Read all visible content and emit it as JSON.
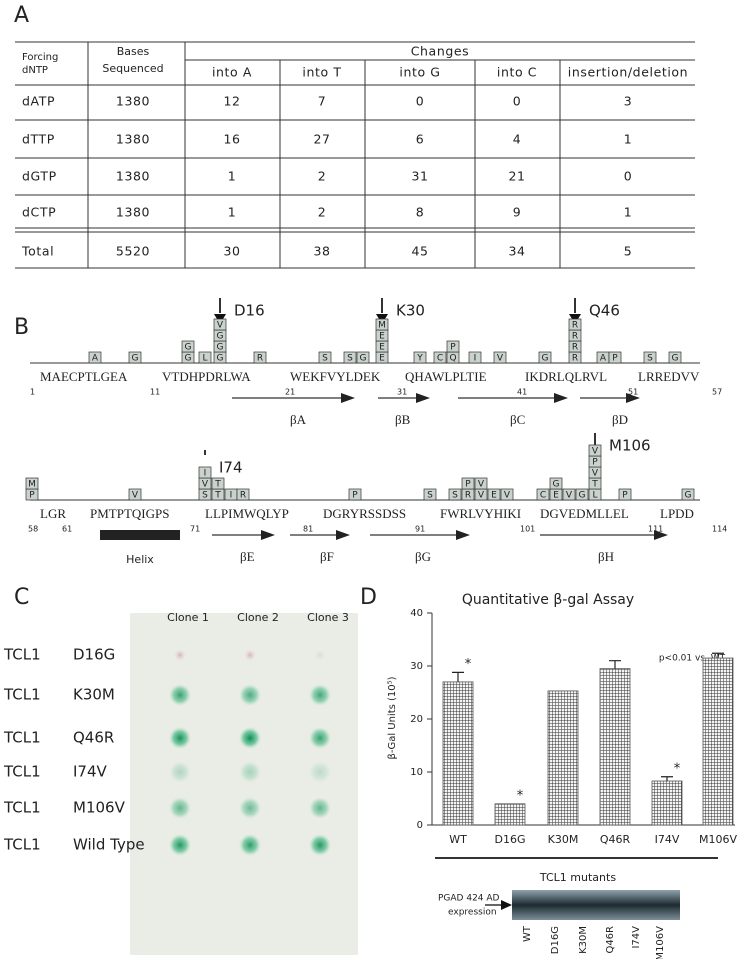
{
  "panel_a": {
    "label": "A",
    "header": {
      "forcing": [
        "Forcing",
        "dNTP"
      ],
      "bases": [
        "Bases",
        "Sequenced"
      ],
      "changes": "Changes",
      "columns": [
        "into A",
        "into T",
        "into G",
        "into C",
        "insertion/deletion"
      ]
    },
    "rows": [
      [
        "dATP",
        1380,
        12,
        7,
        0,
        0,
        3
      ],
      [
        "dTTP",
        1380,
        16,
        27,
        6,
        4,
        1
      ],
      [
        "dGTP",
        1380,
        1,
        2,
        31,
        21,
        0
      ],
      [
        "dCTP",
        1380,
        1,
        2,
        8,
        9,
        1
      ],
      [
        "Total",
        5520,
        30,
        38,
        45,
        34,
        5
      ]
    ]
  },
  "panel_b": {
    "label": "B",
    "rows": [
      {
        "segments": [
          {
            "start": 1,
            "seq": "MAECPTLGEA"
          },
          {
            "start": 11,
            "seq": "VTDHPDRLWA"
          },
          {
            "start": 21,
            "seq": "WEKFVYLDEK"
          },
          {
            "start": 31,
            "seq": "QHAWLPLTIE"
          },
          {
            "start": 41,
            "seq": "IKDRLQLRVL"
          },
          {
            "start": 51,
            "seq": "LRREDVV"
          }
        ],
        "end": 57,
        "strands": [
          "βA",
          "βB",
          "βC",
          "βD"
        ],
        "mutations": [
          "D16",
          "K30",
          "Q46"
        ],
        "substitutions": [
          [
            "A"
          ],
          [
            "G"
          ],
          [
            "G",
            "G"
          ],
          [
            "L"
          ],
          [
            "G",
            "G",
            "G",
            "V"
          ],
          [
            "R"
          ],
          [
            "S"
          ],
          [
            "S"
          ],
          [
            "G"
          ],
          [
            "E",
            "E",
            "E",
            "M"
          ],
          [
            "Y"
          ],
          [
            "C"
          ],
          [
            "Q",
            "P"
          ],
          [
            "I"
          ],
          [
            "V"
          ],
          [
            "G"
          ],
          [
            "R",
            "R",
            "R",
            "R"
          ],
          [
            "A"
          ],
          [
            "P"
          ],
          [
            "S"
          ],
          [
            "G"
          ]
        ]
      },
      {
        "segments": [
          {
            "start": 58,
            "seq": "LGR"
          },
          {
            "start": 61,
            "seq": "PMTPTQIGPS"
          },
          {
            "start": 71,
            "seq": "LLPIMWQLYP"
          },
          {
            "start": 81,
            "seq": "DGRYRSSDSS"
          },
          {
            "start": 91,
            "seq": "FWRLVYHIKI"
          },
          {
            "start": 101,
            "seq": "DGVEDMLLEL"
          },
          {
            "start": 111,
            "seq": "LPDD"
          }
        ],
        "end": 114,
        "strands": [
          "βE",
          "βF",
          "βG",
          "βH"
        ],
        "mutations": [
          "I74",
          "M106"
        ],
        "helix": "Helix",
        "substitutions": [
          [
            "P",
            "M"
          ],
          [
            "V"
          ],
          [
            "S",
            "V",
            "I"
          ],
          [
            "T",
            "T"
          ],
          [
            "I"
          ],
          [
            "R"
          ],
          [
            "P"
          ],
          [
            "S"
          ],
          [
            "S"
          ],
          [
            "R",
            "P"
          ],
          [
            "V",
            "V"
          ],
          [
            "E"
          ],
          [
            "V"
          ],
          [
            "C"
          ],
          [
            "E",
            "G"
          ],
          [
            "V"
          ],
          [
            "G"
          ],
          [
            "L",
            "T",
            "V",
            "P",
            "V"
          ],
          [
            "P"
          ],
          [
            "G"
          ]
        ]
      }
    ]
  },
  "panel_c": {
    "label": "C",
    "clones": [
      "Clone 1",
      "Clone 2",
      "Clone 3"
    ],
    "rows": [
      [
        "TCL1",
        "D16G"
      ],
      [
        "TCL1",
        "K30M"
      ],
      [
        "TCL1",
        "Q46R"
      ],
      [
        "TCL1",
        "I74V"
      ],
      [
        "TCL1",
        "M106V"
      ],
      [
        "TCL1",
        "Wild Type"
      ]
    ]
  },
  "chart_data": {
    "type": "bar",
    "panel_label": "D",
    "title": "Quantitative β-gal Assay",
    "y_label": "β-Gal Units (10⁵)",
    "x_label": "TCL1 mutants",
    "annotation": "p<0.01 vs. WT",
    "categories": [
      "WT",
      "D16G",
      "K30M",
      "Q46R",
      "I74V",
      "M106V"
    ],
    "values": [
      27,
      4,
      25.3,
      29.5,
      8.3,
      31.5
    ],
    "errors": [
      1.8,
      null,
      null,
      1.5,
      0.8,
      0.9
    ],
    "significance": [
      "*",
      "*",
      null,
      null,
      "*",
      null
    ],
    "color": "#555555",
    "ylim": [
      0,
      40
    ],
    "yticks": [
      0,
      10,
      20,
      30,
      40
    ]
  },
  "blot": {
    "label": [
      "PGAD 424 AD",
      "expression"
    ]
  }
}
